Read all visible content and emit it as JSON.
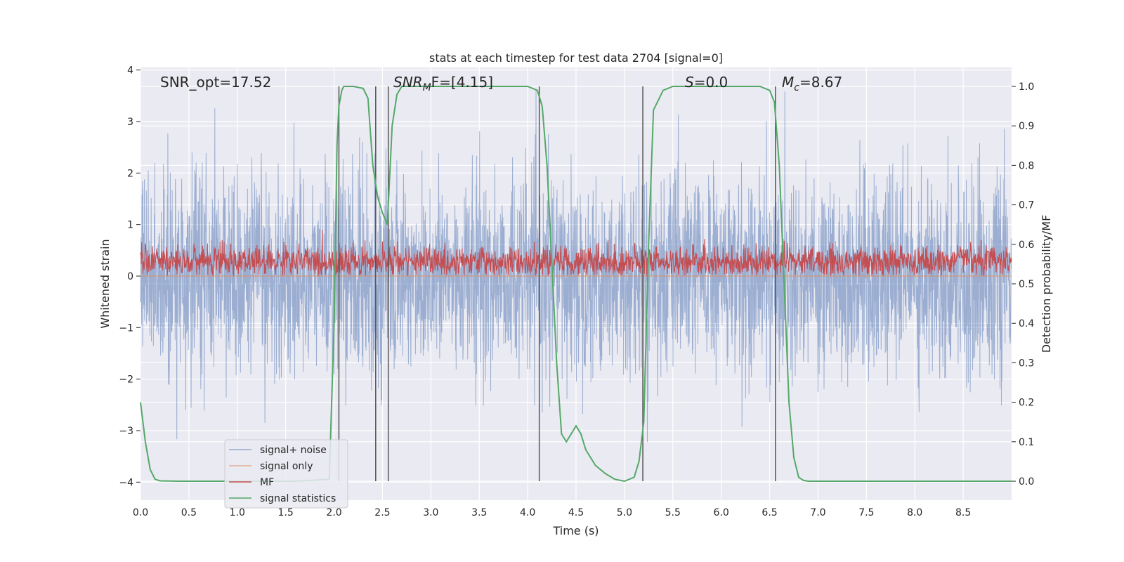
{
  "chart_data": {
    "type": "line",
    "title": "stats at each timestep for test data 2704 [signal=0]",
    "xlabel": "Time (s)",
    "ylabel": "Whitened strain",
    "y2label": "Detection probability/MF",
    "xlim": [
      0,
      9.0
    ],
    "ylim": [
      -4.35,
      4.05
    ],
    "y2lim": [
      -0.048,
      1.048
    ],
    "xticks": [
      0.0,
      0.5,
      1.0,
      1.5,
      2.0,
      2.5,
      3.0,
      3.5,
      4.0,
      4.5,
      5.0,
      5.5,
      6.0,
      6.5,
      7.0,
      7.5,
      8.0,
      8.5
    ],
    "xtick_labels": [
      "0.0",
      "0.5",
      "1.0",
      "1.5",
      "2.0",
      "2.5",
      "3.0",
      "3.5",
      "4.0",
      "4.5",
      "5.0",
      "5.5",
      "6.0",
      "6.5",
      "7.0",
      "7.5",
      "8.0",
      "8.5"
    ],
    "yticks": [
      4,
      3,
      2,
      1,
      0,
      -1,
      -2,
      -3,
      -4
    ],
    "ytick_labels": [
      "4",
      "3",
      "2",
      "1",
      "0",
      "−1",
      "−2",
      "−3",
      "−4"
    ],
    "y2ticks": [
      1.0,
      0.9,
      0.8,
      0.7,
      0.6,
      0.5,
      0.4,
      0.3,
      0.2,
      0.1,
      0.0
    ],
    "y2tick_labels": [
      "1.0",
      "0.9",
      "0.8",
      "0.7",
      "0.6",
      "0.5",
      "0.4",
      "0.3",
      "0.2",
      "0.1",
      "0.0"
    ],
    "annotations": {
      "snr_opt": "SNR_opt=17.52",
      "snr_mf_main": "SNR",
      "snr_mf_sub": "M",
      "snr_mf_rest": "F=[4.15]",
      "s_var": "S",
      "s_rest": "=0.0",
      "mc_var": "M",
      "mc_sub": "c",
      "mc_rest": "=8.67"
    },
    "series": [
      {
        "name": "signal+ noise",
        "color": "#4c72b0",
        "kind": "noise",
        "amplitude_typical": 1.8,
        "amplitude_max": 3.6
      },
      {
        "name": "signal only",
        "color": "#dd8452",
        "kind": "flat",
        "value": 0.0
      },
      {
        "name": "MF",
        "color": "#c44e52",
        "kind": "mf",
        "mean": 0.28,
        "amplitude_max": 0.9
      },
      {
        "name": "signal statistics",
        "color": "#55a868",
        "kind": "probability",
        "x": [
          0.0,
          0.05,
          0.1,
          0.15,
          0.2,
          0.4,
          0.8,
          1.2,
          1.6,
          1.95,
          2.0,
          2.03,
          2.05,
          2.08,
          2.1,
          2.13,
          2.2,
          2.3,
          2.35,
          2.4,
          2.45,
          2.5,
          2.55,
          2.58,
          2.6,
          2.65,
          2.7,
          2.8,
          3.0,
          3.5,
          4.0,
          4.1,
          4.15,
          4.2,
          4.25,
          4.3,
          4.35,
          4.4,
          4.45,
          4.5,
          4.55,
          4.6,
          4.7,
          4.8,
          4.9,
          5.0,
          5.1,
          5.15,
          5.2,
          5.25,
          5.3,
          5.4,
          5.5,
          6.0,
          6.4,
          6.5,
          6.55,
          6.6,
          6.65,
          6.7,
          6.75,
          6.8,
          6.85,
          6.9,
          7.0,
          8.0,
          9.0
        ],
        "y": [
          0.2,
          0.1,
          0.03,
          0.005,
          0.001,
          0.0,
          0.0,
          0.0,
          0.0,
          0.005,
          0.4,
          0.85,
          0.95,
          0.99,
          1.0,
          1.0,
          1.0,
          0.995,
          0.97,
          0.8,
          0.72,
          0.68,
          0.65,
          0.8,
          0.9,
          0.98,
          1.0,
          1.0,
          1.0,
          1.0,
          1.0,
          0.99,
          0.95,
          0.8,
          0.55,
          0.3,
          0.12,
          0.1,
          0.12,
          0.14,
          0.12,
          0.08,
          0.04,
          0.02,
          0.005,
          0.0,
          0.01,
          0.05,
          0.15,
          0.6,
          0.94,
          0.99,
          1.0,
          1.0,
          1.0,
          0.99,
          0.96,
          0.8,
          0.5,
          0.2,
          0.06,
          0.01,
          0.002,
          0.0,
          0.0,
          0.0,
          0.0
        ]
      }
    ],
    "vlines": [
      2.05,
      2.43,
      2.56,
      4.12,
      5.19,
      6.56
    ],
    "legend": {
      "location": "lower-left",
      "entries": [
        "signal+ noise",
        "signal only",
        "MF",
        "signal statistics"
      ]
    }
  }
}
